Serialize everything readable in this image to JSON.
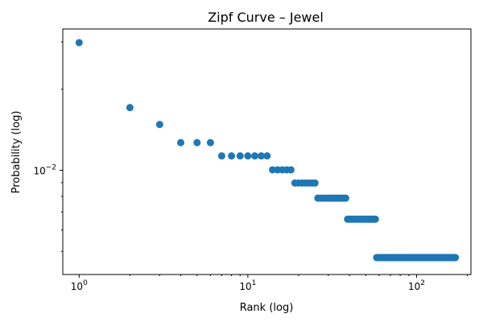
{
  "chart_data": {
    "type": "scatter",
    "title": "Zipf Curve – Jewel",
    "xlabel": "Rank (log)",
    "ylabel": "Probability (log)",
    "xscale": "log",
    "yscale": "log",
    "xlim": [
      0.8,
      210
    ],
    "ylim": [
      0.0041,
      0.0335
    ],
    "x_ticks": [
      {
        "value": 1,
        "base": "10",
        "exp": "0"
      },
      {
        "value": 10,
        "base": "10",
        "exp": "1"
      },
      {
        "value": 100,
        "base": "10",
        "exp": "2"
      }
    ],
    "y_ticks": [
      {
        "value": 0.01,
        "base": "10",
        "exp": "−2"
      }
    ],
    "grid": false,
    "marker_color": "#1f77b4",
    "groups": [
      {
        "from": 1,
        "to": 1,
        "y": 0.0298
      },
      {
        "from": 2,
        "to": 2,
        "y": 0.0171
      },
      {
        "from": 3,
        "to": 3,
        "y": 0.0148
      },
      {
        "from": 4,
        "to": 6,
        "y": 0.01267
      },
      {
        "from": 7,
        "to": 13,
        "y": 0.01131
      },
      {
        "from": 14,
        "to": 18,
        "y": 0.01004
      },
      {
        "from": 19,
        "to": 25,
        "y": 0.00897
      },
      {
        "from": 26,
        "to": 38,
        "y": 0.00788
      },
      {
        "from": 39,
        "to": 57,
        "y": 0.00658
      },
      {
        "from": 58,
        "to": 170,
        "y": 0.00474
      }
    ]
  }
}
